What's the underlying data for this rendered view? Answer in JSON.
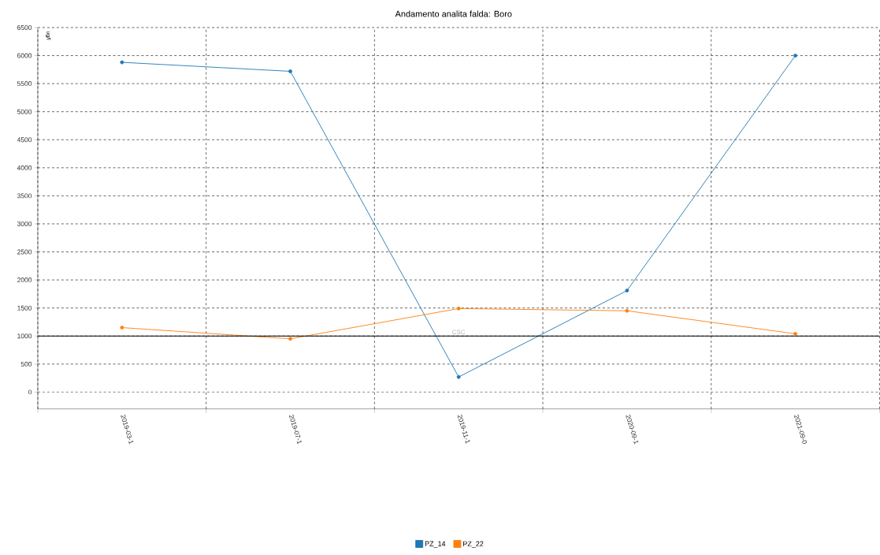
{
  "chart_data": {
    "type": "line",
    "title": "Andamento analita falda: Boro",
    "ylabel": "ug/l",
    "categories": [
      "2019-03-1",
      "2019-07-1",
      "2019-11-1",
      "2020-09-1",
      "2021-09-0"
    ],
    "series": [
      {
        "name": "PZ_14",
        "color": "#1f77b4",
        "values": [
          5880,
          5720,
          270,
          1810,
          6000
        ]
      },
      {
        "name": "PZ_22",
        "color": "#ff7f0e",
        "values": [
          1150,
          950,
          1490,
          1450,
          1040
        ]
      }
    ],
    "ylim": [
      -300,
      6500
    ],
    "yticks": [
      0,
      500,
      1000,
      1500,
      2000,
      2500,
      3000,
      3500,
      4000,
      4500,
      5000,
      5500,
      6000,
      6500
    ],
    "ref_lines": [
      {
        "axis": "y",
        "value": 1000,
        "label": "CSC",
        "color": "#000000"
      }
    ],
    "grid": true,
    "legend": "bottom",
    "marker": "circle",
    "line_style": "solid"
  }
}
